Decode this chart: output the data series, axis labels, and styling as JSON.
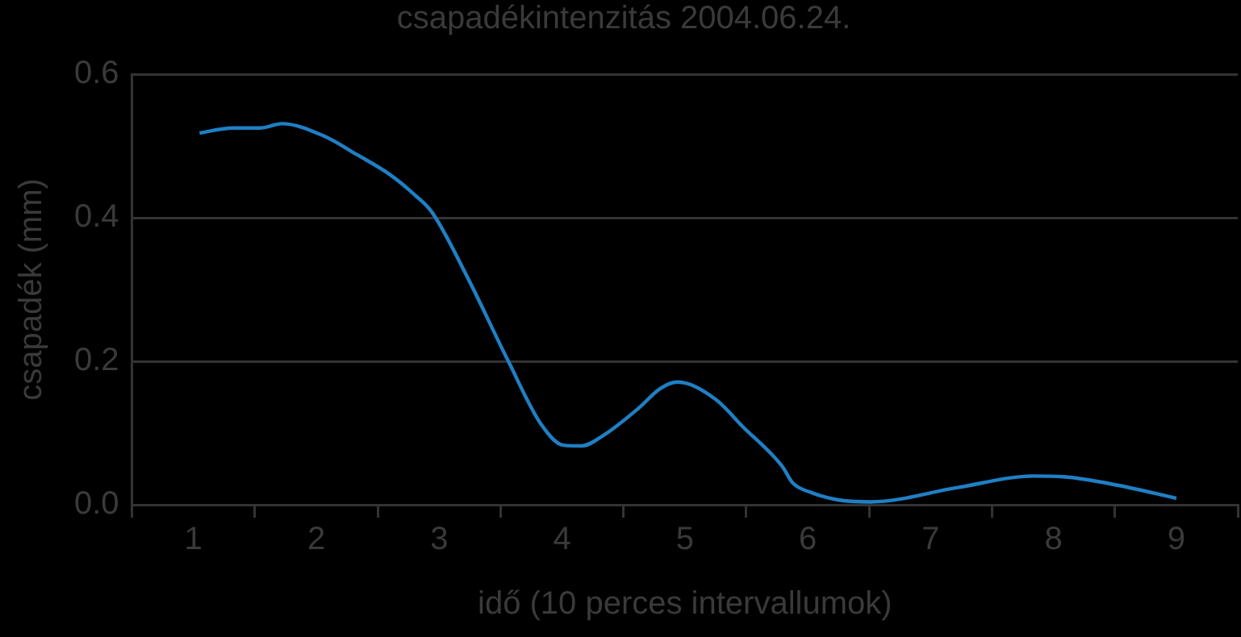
{
  "chart_data": {
    "type": "line",
    "title": "csapadékintenzitás 2004.06.24.",
    "xlabel": "idő (10 perces intervallumok)",
    "ylabel": "csapadék (mm)",
    "x": [
      1.05,
      1.32,
      1.54,
      1.72,
      2.06,
      2.33,
      2.6,
      2.8,
      2.94,
      3.23,
      3.56,
      3.83,
      4.01,
      4.16,
      4.34,
      4.62,
      4.8,
      4.94,
      5.25,
      5.47,
      5.79,
      5.88,
      6.03,
      6.24,
      6.51,
      7.22,
      7.83,
      8.08,
      8.53,
      9.0
    ],
    "values": [
      0.518,
      0.525,
      0.525,
      0.531,
      0.514,
      0.488,
      0.46,
      0.432,
      0.408,
      0.317,
      0.201,
      0.112,
      0.083,
      0.082,
      0.097,
      0.134,
      0.162,
      0.171,
      0.147,
      0.109,
      0.054,
      0.03,
      0.017,
      0.007,
      0.004,
      0.024,
      0.04,
      0.039,
      0.027,
      0.009
    ],
    "color": "#1f7fc4",
    "xlim": [
      0.5,
      9.5
    ],
    "xticks": [
      {
        "value": 0.5,
        "label": null
      },
      1,
      {
        "value": 1.5,
        "label": null
      },
      2,
      {
        "value": 2.5,
        "label": null
      },
      3,
      {
        "value": 3.5,
        "label": null
      },
      4,
      {
        "value": 4.5,
        "label": null
      },
      5,
      {
        "value": 5.5,
        "label": null
      },
      6,
      {
        "value": 6.5,
        "label": null
      },
      7,
      {
        "value": 7.5,
        "label": null
      },
      8,
      {
        "value": 8.5,
        "label": null
      },
      9,
      {
        "value": 9.5,
        "label": null
      }
    ],
    "ylim": [
      0,
      0.6
    ],
    "yticks": [
      {
        "value": 0,
        "label": "0.0"
      },
      0.2,
      0.4,
      0.6
    ],
    "grid": "y",
    "legend": false,
    "marker": "none",
    "line_style": "solid"
  }
}
